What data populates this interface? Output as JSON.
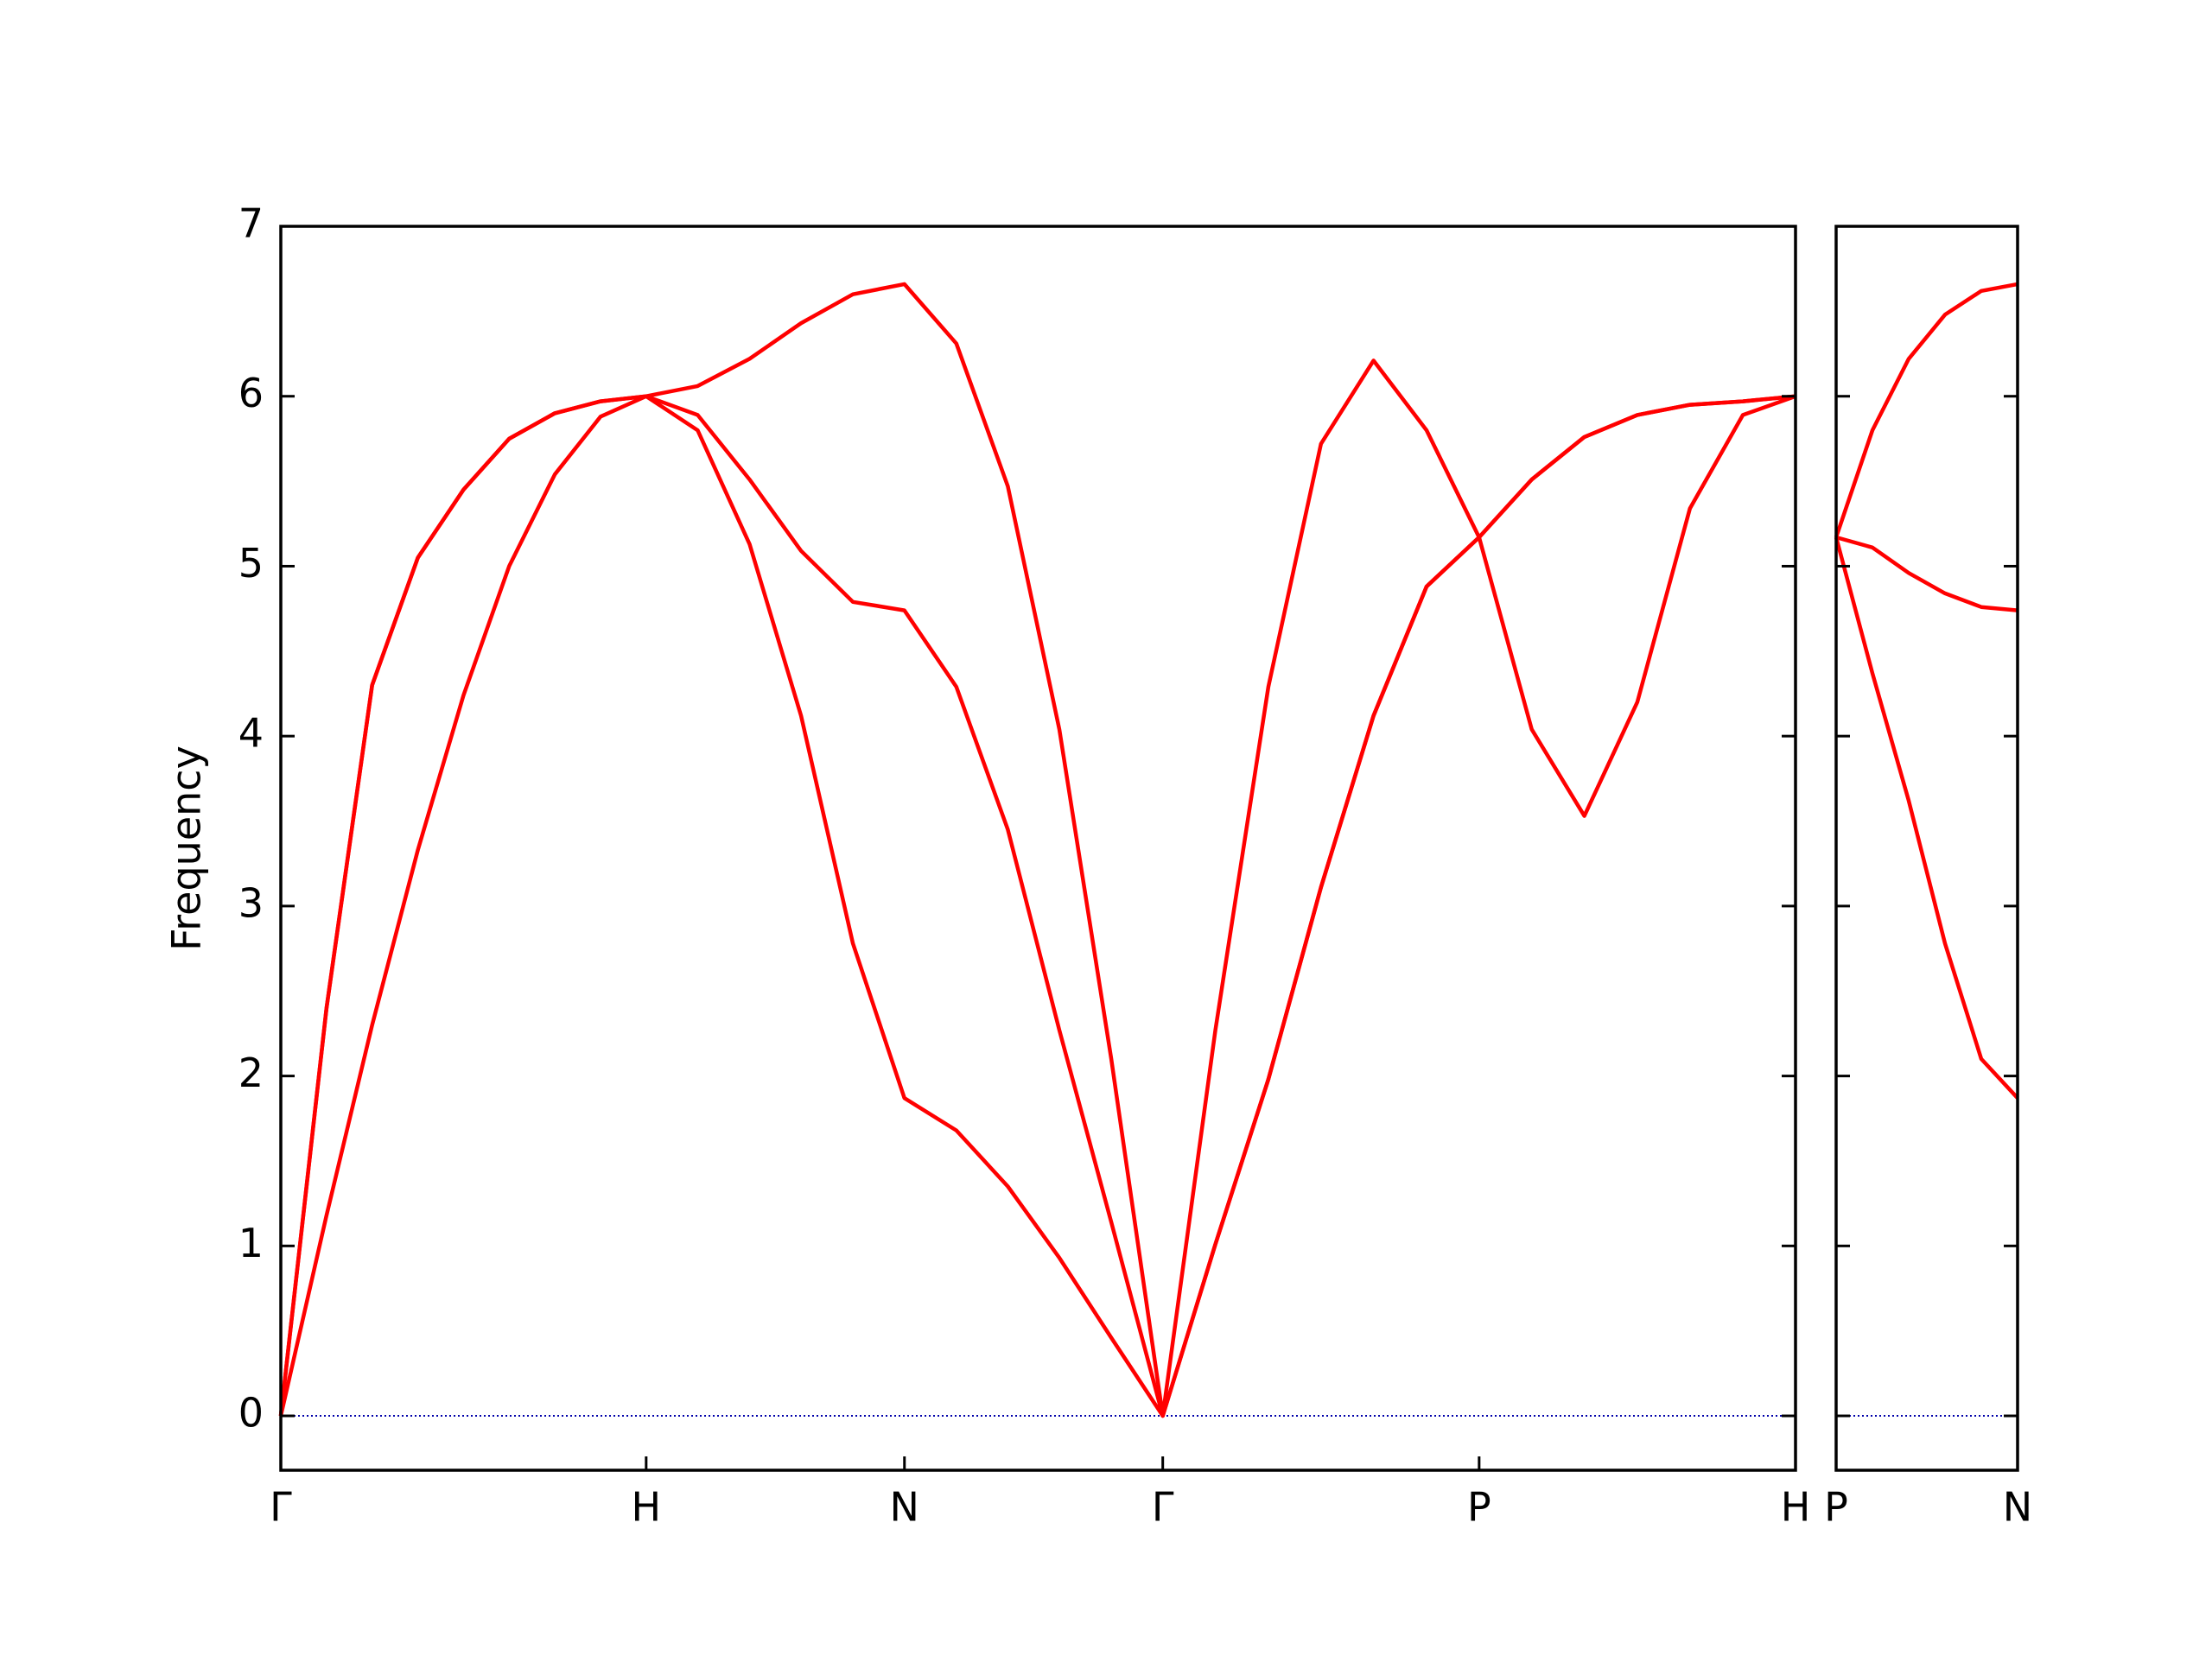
{
  "chart_data": [
    {
      "type": "line",
      "ylabel": "Frequency",
      "x": [
        0,
        0.125,
        0.25,
        0.375,
        0.5,
        0.625,
        0.75,
        0.875,
        1,
        1.141,
        1.283,
        1.424,
        1.566,
        1.707,
        1.849,
        1.99,
        2.131,
        2.273,
        2.414,
        2.558,
        2.703,
        2.847,
        2.991,
        3.136,
        3.28,
        3.424,
        3.568,
        3.713,
        3.857,
        4.002,
        4.146
      ],
      "series": [
        {
          "color": "#ff0000",
          "values": [
            0,
            1.18,
            2.3,
            3.33,
            4.24,
            5.0,
            5.54,
            5.88,
            6,
            5.8,
            5.13,
            4.12,
            2.78,
            1.87,
            1.68,
            1.35,
            0.93,
            0.46,
            0,
            1.01,
            1.98,
            3.11,
            4.12,
            4.88,
            5.17,
            5.51,
            5.76,
            5.89,
            5.95,
            5.97,
            6
          ]
        },
        {
          "color": "#ff0000",
          "values": [
            0,
            2.4,
            4.3,
            5.05,
            5.45,
            5.75,
            5.9,
            5.97,
            6,
            5.89,
            5.51,
            5.09,
            4.79,
            4.74,
            4.29,
            3.45,
            2.27,
            1.14,
            0,
            1.01,
            1.98,
            3.11,
            4.12,
            4.88,
            5.17,
            5.51,
            5.76,
            5.89,
            5.95,
            5.97,
            6
          ]
        },
        {
          "color": "#ff0000",
          "values": [
            0,
            2.4,
            4.3,
            5.05,
            5.45,
            5.75,
            5.9,
            5.97,
            6,
            6.06,
            6.22,
            6.43,
            6.6,
            6.66,
            6.31,
            5.47,
            4.04,
            2.1,
            0,
            2.27,
            4.29,
            5.72,
            6.21,
            5.8,
            5.17,
            4.04,
            3.53,
            4.2,
            5.34,
            5.89,
            6
          ]
        }
      ],
      "xlim": [
        0,
        4.146
      ],
      "xticks": [
        {
          "value": 0,
          "label": "Γ"
        },
        {
          "value": 1,
          "label": "H"
        },
        {
          "value": 1.707,
          "label": "N"
        },
        {
          "value": 2.414,
          "label": "Γ"
        },
        {
          "value": 3.28,
          "label": "P"
        },
        {
          "value": 4.146,
          "label": "H"
        }
      ],
      "ylim": [
        -0.32,
        7
      ],
      "yticks": [
        0,
        1,
        2,
        3,
        4,
        5,
        6,
        7
      ],
      "show_ytick_labels": true,
      "zero_line": true,
      "zero_line_color": "#0000aa"
    },
    {
      "type": "line",
      "x": [
        0,
        0.1,
        0.2,
        0.3,
        0.4,
        0.5
      ],
      "series": [
        {
          "color": "#ff0000",
          "values": [
            5.17,
            4.37,
            3.62,
            2.78,
            2.1,
            1.87
          ]
        },
        {
          "color": "#ff0000",
          "values": [
            5.17,
            5.11,
            4.96,
            4.84,
            4.76,
            4.74
          ]
        },
        {
          "color": "#ff0000",
          "values": [
            5.17,
            5.8,
            6.22,
            6.48,
            6.62,
            6.66
          ]
        }
      ],
      "xlim": [
        0,
        0.5
      ],
      "xticks": [
        {
          "value": 0,
          "label": "P"
        },
        {
          "value": 0.5,
          "label": "N"
        }
      ],
      "ylim": [
        -0.32,
        7
      ],
      "yticks": [
        0,
        1,
        2,
        3,
        4,
        5,
        6,
        7
      ],
      "show_ytick_labels": false,
      "zero_line": true,
      "zero_line_color": "#0000aa"
    }
  ]
}
